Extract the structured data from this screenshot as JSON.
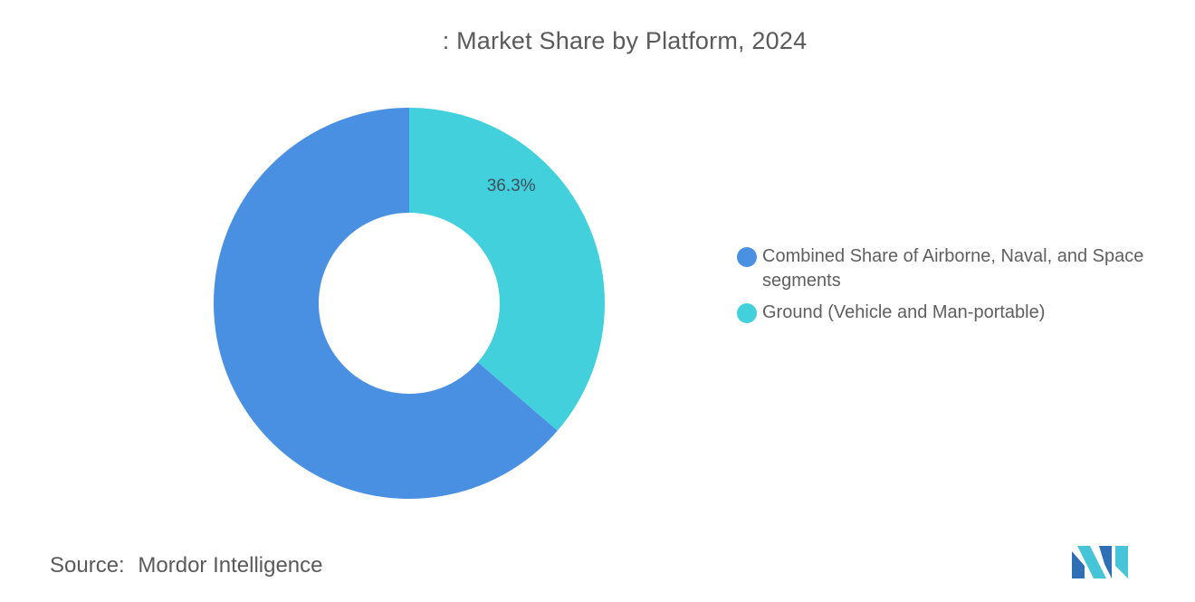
{
  "chart_data": {
    "type": "pie",
    "title": ": Market Share by Platform, 2024",
    "donut": true,
    "slices": [
      {
        "name": "Combined Share of Airborne, Naval, and Space segments",
        "value": 63.7,
        "color": "#4a90e2",
        "label": ""
      },
      {
        "name": "Ground (Vehicle and Man-portable)",
        "value": 36.3,
        "color": "#42d0dc",
        "label": "36.3%"
      }
    ],
    "legend_position": "right"
  },
  "footer": {
    "source_label": "Source:",
    "source_value": "Mordor Intelligence"
  },
  "branding": {
    "logo_icon": "mordor-intelligence-logo-icon",
    "logo_colors": [
      "#2f6fb5",
      "#47c5d8"
    ]
  }
}
